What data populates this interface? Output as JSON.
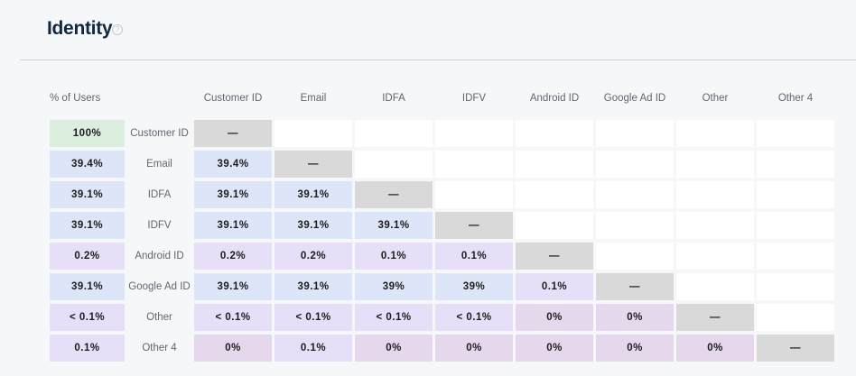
{
  "title": "Identity",
  "help_icon": "?",
  "pct_header": "% of Users",
  "columns": [
    "Customer ID",
    "Email",
    "IDFA",
    "IDFV",
    "Android ID",
    "Google Ad ID",
    "Other",
    "Other 4"
  ],
  "colors": {
    "dash": "#d9d9d9",
    "empty": "#ffffff",
    "high": "#dde5f8",
    "low": "#e6dff7",
    "zero": "#e5d7ec",
    "full": "#dcefdf"
  },
  "rows": [
    {
      "label": "Customer ID",
      "pct": "100%",
      "cells": [
        "—",
        "",
        "",
        "",
        "",
        "",
        "",
        ""
      ]
    },
    {
      "label": "Email",
      "pct": "39.4%",
      "cells": [
        "39.4%",
        "—",
        "",
        "",
        "",
        "",
        "",
        ""
      ]
    },
    {
      "label": "IDFA",
      "pct": "39.1%",
      "cells": [
        "39.1%",
        "39.1%",
        "—",
        "",
        "",
        "",
        "",
        ""
      ]
    },
    {
      "label": "IDFV",
      "pct": "39.1%",
      "cells": [
        "39.1%",
        "39.1%",
        "39.1%",
        "—",
        "",
        "",
        "",
        ""
      ]
    },
    {
      "label": "Android ID",
      "pct": "0.2%",
      "cells": [
        "0.2%",
        "0.2%",
        "0.1%",
        "0.1%",
        "—",
        "",
        "",
        ""
      ]
    },
    {
      "label": "Google Ad ID",
      "pct": "39.1%",
      "cells": [
        "39.1%",
        "39.1%",
        "39%",
        "39%",
        "0.1%",
        "—",
        "",
        ""
      ]
    },
    {
      "label": "Other",
      "pct": "< 0.1%",
      "cells": [
        "< 0.1%",
        "< 0.1%",
        "< 0.1%",
        "< 0.1%",
        "0%",
        "0%",
        "—",
        ""
      ]
    },
    {
      "label": "Other 4",
      "pct": "0.1%",
      "cells": [
        "0%",
        "0.1%",
        "0%",
        "0%",
        "0%",
        "0%",
        "0%",
        "—"
      ]
    }
  ]
}
